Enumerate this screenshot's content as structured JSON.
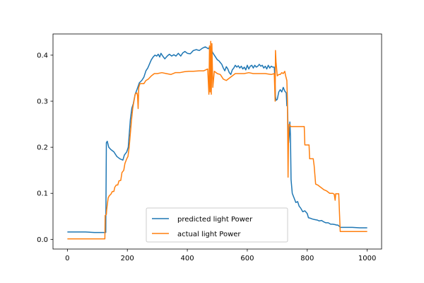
{
  "chart_data": {
    "type": "line",
    "title": "",
    "xlabel": "",
    "ylabel": "",
    "xlim": [
      -48,
      1048
    ],
    "ylim": [
      -0.021,
      0.446
    ],
    "x_ticks": [
      0,
      200,
      400,
      600,
      800,
      1000
    ],
    "y_ticks": [
      0.0,
      0.1,
      0.2,
      0.3,
      0.4
    ],
    "y_tick_labels": [
      "0.0",
      "0.1",
      "0.2",
      "0.3",
      "0.4"
    ],
    "grid": false,
    "legend_position": "bottom-center",
    "series": [
      {
        "name": "predicted light Power",
        "color": "#1f77b4",
        "points": [
          [
            0,
            0.016
          ],
          [
            30,
            0.016
          ],
          [
            60,
            0.016
          ],
          [
            90,
            0.015
          ],
          [
            120,
            0.015
          ],
          [
            128,
            0.015
          ],
          [
            130,
            0.21
          ],
          [
            133,
            0.213
          ],
          [
            138,
            0.2
          ],
          [
            145,
            0.195
          ],
          [
            155,
            0.19
          ],
          [
            165,
            0.18
          ],
          [
            175,
            0.175
          ],
          [
            185,
            0.172
          ],
          [
            190,
            0.183
          ],
          [
            198,
            0.19
          ],
          [
            203,
            0.2
          ],
          [
            210,
            0.26
          ],
          [
            215,
            0.285
          ],
          [
            220,
            0.295
          ],
          [
            226,
            0.315
          ],
          [
            232,
            0.325
          ],
          [
            240,
            0.34
          ],
          [
            248,
            0.345
          ],
          [
            255,
            0.352
          ],
          [
            262,
            0.366
          ],
          [
            268,
            0.372
          ],
          [
            272,
            0.378
          ],
          [
            276,
            0.384
          ],
          [
            280,
            0.39
          ],
          [
            286,
            0.396
          ],
          [
            292,
            0.4
          ],
          [
            298,
            0.398
          ],
          [
            303,
            0.402
          ],
          [
            308,
            0.396
          ],
          [
            312,
            0.404
          ],
          [
            318,
            0.398
          ],
          [
            325,
            0.392
          ],
          [
            333,
            0.398
          ],
          [
            340,
            0.402
          ],
          [
            348,
            0.398
          ],
          [
            355,
            0.401
          ],
          [
            362,
            0.398
          ],
          [
            370,
            0.404
          ],
          [
            378,
            0.398
          ],
          [
            385,
            0.405
          ],
          [
            392,
            0.408
          ],
          [
            400,
            0.404
          ],
          [
            410,
            0.403
          ],
          [
            420,
            0.41
          ],
          [
            430,
            0.412
          ],
          [
            440,
            0.41
          ],
          [
            450,
            0.415
          ],
          [
            460,
            0.418
          ],
          [
            470,
            0.414
          ],
          [
            475,
            0.418
          ],
          [
            480,
            0.412
          ],
          [
            485,
            0.405
          ],
          [
            490,
            0.4
          ],
          [
            495,
            0.395
          ],
          [
            500,
            0.39
          ],
          [
            505,
            0.388
          ],
          [
            510,
            0.384
          ],
          [
            515,
            0.38
          ],
          [
            520,
            0.372
          ],
          [
            525,
            0.366
          ],
          [
            530,
            0.375
          ],
          [
            535,
            0.37
          ],
          [
            540,
            0.362
          ],
          [
            545,
            0.358
          ],
          [
            550,
            0.368
          ],
          [
            555,
            0.372
          ],
          [
            560,
            0.378
          ],
          [
            565,
            0.374
          ],
          [
            570,
            0.377
          ],
          [
            575,
            0.372
          ],
          [
            580,
            0.376
          ],
          [
            585,
            0.37
          ],
          [
            590,
            0.374
          ],
          [
            595,
            0.368
          ],
          [
            600,
            0.378
          ],
          [
            605,
            0.37
          ],
          [
            610,
            0.376
          ],
          [
            615,
            0.378
          ],
          [
            620,
            0.372
          ],
          [
            625,
            0.378
          ],
          [
            630,
            0.374
          ],
          [
            635,
            0.376
          ],
          [
            640,
            0.38
          ],
          [
            645,
            0.376
          ],
          [
            650,
            0.378
          ],
          [
            655,
            0.372
          ],
          [
            660,
            0.376
          ],
          [
            665,
            0.37
          ],
          [
            670,
            0.378
          ],
          [
            675,
            0.372
          ],
          [
            680,
            0.376
          ],
          [
            685,
            0.374
          ],
          [
            690,
            0.374
          ],
          [
            692,
            0.352
          ],
          [
            694,
            0.31
          ],
          [
            696,
            0.302
          ],
          [
            700,
            0.304
          ],
          [
            705,
            0.32
          ],
          [
            710,
            0.325
          ],
          [
            715,
            0.32
          ],
          [
            720,
            0.33
          ],
          [
            725,
            0.322
          ],
          [
            730,
            0.318
          ],
          [
            732,
            0.29
          ],
          [
            734,
            0.29
          ],
          [
            736,
            0.24
          ],
          [
            738,
            0.21
          ],
          [
            740,
            0.225
          ],
          [
            742,
            0.255
          ],
          [
            744,
            0.225
          ],
          [
            746,
            0.13
          ],
          [
            750,
            0.1
          ],
          [
            756,
            0.09
          ],
          [
            762,
            0.08
          ],
          [
            768,
            0.082
          ],
          [
            773,
            0.072
          ],
          [
            778,
            0.068
          ],
          [
            785,
            0.06
          ],
          [
            792,
            0.062
          ],
          [
            800,
            0.056
          ],
          [
            804,
            0.047
          ],
          [
            810,
            0.046
          ],
          [
            818,
            0.044
          ],
          [
            825,
            0.043
          ],
          [
            833,
            0.042
          ],
          [
            840,
            0.04
          ],
          [
            848,
            0.041
          ],
          [
            855,
            0.038
          ],
          [
            862,
            0.036
          ],
          [
            870,
            0.036
          ],
          [
            878,
            0.033
          ],
          [
            885,
            0.033
          ],
          [
            893,
            0.032
          ],
          [
            898,
            0.031
          ],
          [
            902,
            0.031
          ],
          [
            906,
            0.029
          ],
          [
            910,
            0.026
          ],
          [
            925,
            0.026
          ],
          [
            950,
            0.026
          ],
          [
            975,
            0.025
          ],
          [
            1000,
            0.025
          ]
        ]
      },
      {
        "name": "actual light Power",
        "color": "#ff7f0e",
        "points": [
          [
            0,
            0.001
          ],
          [
            40,
            0.001
          ],
          [
            80,
            0.001
          ],
          [
            120,
            0.001
          ],
          [
            125,
            0.001
          ],
          [
            126,
            0.052
          ],
          [
            130,
            0.054
          ],
          [
            131,
            0.064
          ],
          [
            133,
            0.075
          ],
          [
            136,
            0.09
          ],
          [
            140,
            0.095
          ],
          [
            145,
            0.098
          ],
          [
            150,
            0.104
          ],
          [
            155,
            0.104
          ],
          [
            158,
            0.113
          ],
          [
            163,
            0.118
          ],
          [
            168,
            0.118
          ],
          [
            172,
            0.127
          ],
          [
            178,
            0.128
          ],
          [
            182,
            0.145
          ],
          [
            188,
            0.15
          ],
          [
            192,
            0.165
          ],
          [
            198,
            0.175
          ],
          [
            202,
            0.18
          ],
          [
            206,
            0.2
          ],
          [
            210,
            0.23
          ],
          [
            214,
            0.26
          ],
          [
            218,
            0.285
          ],
          [
            222,
            0.3
          ],
          [
            226,
            0.315
          ],
          [
            230,
            0.318
          ],
          [
            232,
            0.318
          ],
          [
            234,
            0.312
          ],
          [
            236,
            0.284
          ],
          [
            238,
            0.33
          ],
          [
            242,
            0.338
          ],
          [
            248,
            0.338
          ],
          [
            255,
            0.338
          ],
          [
            262,
            0.345
          ],
          [
            270,
            0.348
          ],
          [
            280,
            0.355
          ],
          [
            290,
            0.36
          ],
          [
            300,
            0.36
          ],
          [
            315,
            0.362
          ],
          [
            330,
            0.36
          ],
          [
            345,
            0.358
          ],
          [
            360,
            0.362
          ],
          [
            375,
            0.362
          ],
          [
            390,
            0.364
          ],
          [
            405,
            0.365
          ],
          [
            420,
            0.365
          ],
          [
            440,
            0.366
          ],
          [
            455,
            0.366
          ],
          [
            468,
            0.37
          ],
          [
            472,
            0.315
          ],
          [
            474,
            0.42
          ],
          [
            476,
            0.32
          ],
          [
            478,
            0.43
          ],
          [
            480,
            0.315
          ],
          [
            482,
            0.425
          ],
          [
            485,
            0.33
          ],
          [
            490,
            0.365
          ],
          [
            500,
            0.36
          ],
          [
            510,
            0.358
          ],
          [
            520,
            0.348
          ],
          [
            530,
            0.345
          ],
          [
            540,
            0.35
          ],
          [
            550,
            0.355
          ],
          [
            560,
            0.36
          ],
          [
            575,
            0.36
          ],
          [
            590,
            0.36
          ],
          [
            605,
            0.362
          ],
          [
            620,
            0.36
          ],
          [
            640,
            0.36
          ],
          [
            660,
            0.36
          ],
          [
            680,
            0.358
          ],
          [
            690,
            0.36
          ],
          [
            692,
            0.318
          ],
          [
            693,
            0.3
          ],
          [
            694,
            0.41
          ],
          [
            696,
            0.385
          ],
          [
            700,
            0.355
          ],
          [
            705,
            0.358
          ],
          [
            710,
            0.358
          ],
          [
            715,
            0.362
          ],
          [
            720,
            0.36
          ],
          [
            725,
            0.365
          ],
          [
            728,
            0.355
          ],
          [
            732,
            0.345
          ],
          [
            734,
            0.3
          ],
          [
            736,
            0.135
          ],
          [
            737,
            0.19
          ],
          [
            738,
            0.23
          ],
          [
            740,
            0.25
          ],
          [
            745,
            0.245
          ],
          [
            752,
            0.245
          ],
          [
            760,
            0.245
          ],
          [
            770,
            0.245
          ],
          [
            780,
            0.245
          ],
          [
            790,
            0.245
          ],
          [
            792,
            0.205
          ],
          [
            798,
            0.205
          ],
          [
            806,
            0.205
          ],
          [
            808,
            0.175
          ],
          [
            815,
            0.175
          ],
          [
            820,
            0.175
          ],
          [
            823,
            0.16
          ],
          [
            828,
            0.12
          ],
          [
            835,
            0.118
          ],
          [
            845,
            0.113
          ],
          [
            855,
            0.108
          ],
          [
            865,
            0.105
          ],
          [
            875,
            0.1
          ],
          [
            885,
            0.1
          ],
          [
            890,
            0.098
          ],
          [
            893,
            0.085
          ],
          [
            895,
            0.099
          ],
          [
            905,
            0.099
          ],
          [
            910,
            0.017
          ],
          [
            930,
            0.017
          ],
          [
            960,
            0.017
          ],
          [
            990,
            0.017
          ],
          [
            1000,
            0.017
          ]
        ]
      }
    ]
  }
}
